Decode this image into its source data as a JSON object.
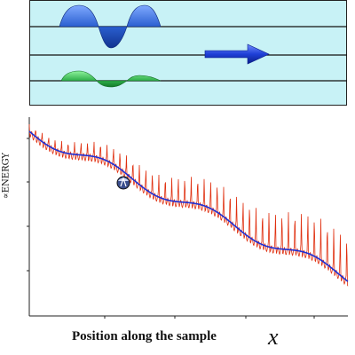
{
  "labels": {
    "y_axis": "∝ENERGY",
    "x_axis": "Position along the sample",
    "x_symbol": "x"
  },
  "colors": {
    "panel_bg": "#c8f2f6",
    "wave_upper": "#2a5fd0",
    "wave_lower": "#2fb04a",
    "arrow": "#1f3fd6",
    "curve_fine": "#e03010",
    "curve_average": "#1c2fd6",
    "ball": "#3b4f8e"
  },
  "icons": {
    "direction_arrow": "arrow-right-icon",
    "particle": "ball-icon"
  }
}
